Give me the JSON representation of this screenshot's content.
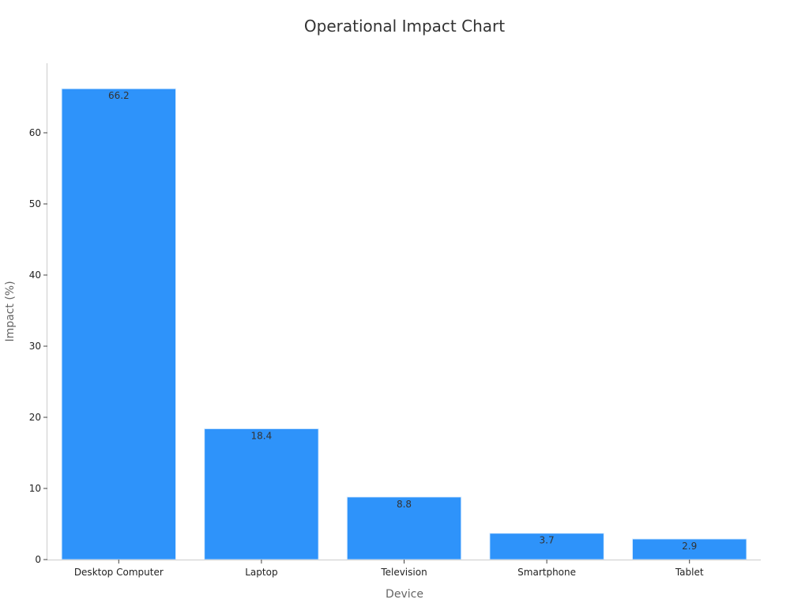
{
  "chart_data": {
    "type": "bar",
    "title": "Operational Impact Chart",
    "xlabel": "Device",
    "ylabel": "Impact (%)",
    "categories": [
      "Desktop Computer",
      "Laptop",
      "Television",
      "Smartphone",
      "Tablet"
    ],
    "values": [
      66.2,
      18.4,
      8.8,
      3.7,
      2.9
    ],
    "data_labels": [
      "66.2",
      "18.4",
      "8.8",
      "3.7",
      "2.9"
    ],
    "ylim": [
      0,
      70
    ],
    "yticks": [
      0,
      10,
      20,
      30,
      40,
      50,
      60
    ],
    "grid": false,
    "legend": "none",
    "bar_color": "#2E93FA",
    "bar_edge_color": "#DDEEFF"
  }
}
